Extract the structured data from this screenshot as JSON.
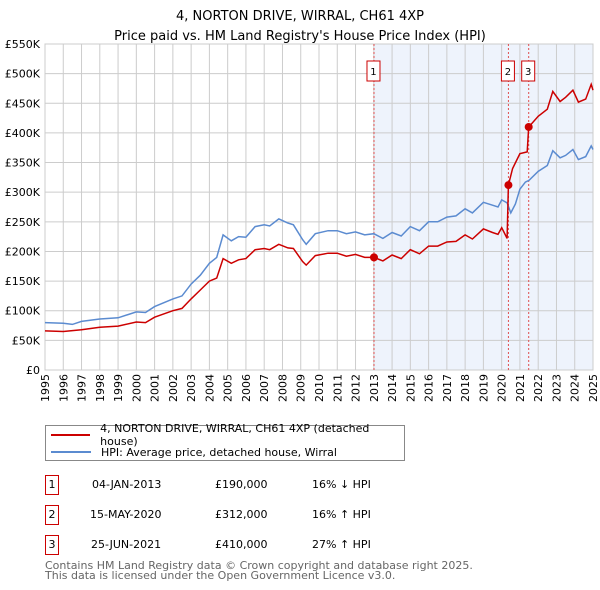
{
  "title": "4, NORTON DRIVE, WIRRAL, CH61 4XP",
  "subtitle": "Price paid vs. HM Land Registry's House Price Index (HPI)",
  "chart_data": {
    "type": "line",
    "xlim": [
      1995,
      2025
    ],
    "ylim": [
      0,
      550000
    ],
    "x_ticks": [
      "1995",
      "1996",
      "1997",
      "1998",
      "1999",
      "2000",
      "2001",
      "2002",
      "2003",
      "2004",
      "2005",
      "2006",
      "2007",
      "2008",
      "2009",
      "2010",
      "2011",
      "2012",
      "2013",
      "2014",
      "2015",
      "2016",
      "2017",
      "2018",
      "2019",
      "2020",
      "2021",
      "2022",
      "2023",
      "2024",
      "2025"
    ],
    "y_ticks": [
      {
        "v": 0,
        "label": "£0"
      },
      {
        "v": 50000,
        "label": "£50K"
      },
      {
        "v": 100000,
        "label": "£100K"
      },
      {
        "v": 150000,
        "label": "£150K"
      },
      {
        "v": 200000,
        "label": "£200K"
      },
      {
        "v": 250000,
        "label": "£250K"
      },
      {
        "v": 300000,
        "label": "£300K"
      },
      {
        "v": 350000,
        "label": "£350K"
      },
      {
        "v": 400000,
        "label": "£400K"
      },
      {
        "v": 450000,
        "label": "£450K"
      },
      {
        "v": 500000,
        "label": "£500K"
      },
      {
        "v": 550000,
        "label": "£550K"
      }
    ],
    "grid": true,
    "shaded_from": 2013.01,
    "series": [
      {
        "name": "4, NORTON DRIVE, WIRRAL, CH61 4XP (detached house)",
        "color": "#cc0000",
        "x": [
          1995,
          1996,
          1997,
          1998,
          1999,
          2000,
          2000.5,
          2001,
          2002,
          2002.5,
          2003,
          2003.5,
          2004,
          2004.4,
          2004.75,
          2005.2,
          2005.6,
          2006,
          2006.5,
          2007,
          2007.3,
          2007.8,
          2008.3,
          2008.6,
          2009.1,
          2009.3,
          2009.8,
          2010.5,
          2011,
          2011.5,
          2012,
          2012.5,
          2013.01,
          2013.5,
          2014,
          2014.5,
          2015,
          2015.5,
          2016,
          2016.5,
          2017,
          2017.5,
          2018,
          2018.4,
          2019,
          2019.5,
          2019.8,
          2020,
          2020.3,
          2020.37,
          2020.6,
          2021,
          2021.4,
          2021.48,
          2022,
          2022.5,
          2022.8,
          2023.2,
          2023.5,
          2023.9,
          2024.2,
          2024.6,
          2024.9,
          2025
        ],
        "y": [
          66000,
          65000,
          68000,
          72000,
          74000,
          81000,
          80000,
          89000,
          100000,
          104000,
          120000,
          135000,
          150000,
          155000,
          188000,
          180000,
          186000,
          188000,
          203000,
          205000,
          203000,
          212000,
          206000,
          205000,
          183000,
          177000,
          193000,
          197000,
          197000,
          192000,
          195000,
          190000,
          190000,
          184000,
          194000,
          188000,
          203000,
          196000,
          209000,
          209000,
          216000,
          217000,
          228000,
          221000,
          238000,
          232000,
          229000,
          240000,
          222000,
          312000,
          340000,
          365000,
          368000,
          410000,
          428000,
          440000,
          470000,
          453000,
          460000,
          472000,
          452000,
          457000,
          482000,
          472000
        ]
      },
      {
        "name": "HPI: Average price, detached house, Wirral",
        "color": "#5b8bd0",
        "x": [
          1995,
          1996,
          1996.5,
          1997,
          1998,
          1999,
          2000,
          2000.5,
          2001,
          2002,
          2002.5,
          2003,
          2003.5,
          2004,
          2004.4,
          2004.75,
          2005.2,
          2005.6,
          2006,
          2006.5,
          2007,
          2007.3,
          2007.8,
          2008.3,
          2008.6,
          2009.1,
          2009.3,
          2009.8,
          2010.5,
          2011,
          2011.5,
          2012,
          2012.5,
          2013,
          2013.5,
          2014,
          2014.5,
          2015,
          2015.5,
          2016,
          2016.5,
          2017,
          2017.5,
          2018,
          2018.4,
          2019,
          2019.5,
          2019.8,
          2020,
          2020.3,
          2020.5,
          2020.75,
          2021,
          2021.3,
          2021.5,
          2022,
          2022.5,
          2022.8,
          2023.2,
          2023.5,
          2023.9,
          2024.2,
          2024.6,
          2024.9,
          2025
        ],
        "y": [
          80000,
          79000,
          77000,
          82000,
          86000,
          88000,
          98000,
          97000,
          107000,
          120000,
          125000,
          145000,
          160000,
          180000,
          190000,
          228000,
          218000,
          225000,
          224000,
          242000,
          245000,
          243000,
          255000,
          248000,
          245000,
          220000,
          212000,
          230000,
          235000,
          235000,
          230000,
          233000,
          228000,
          230000,
          222000,
          232000,
          226000,
          242000,
          235000,
          250000,
          250000,
          258000,
          260000,
          272000,
          265000,
          283000,
          278000,
          275000,
          287000,
          282000,
          265000,
          280000,
          305000,
          317000,
          320000,
          335000,
          345000,
          370000,
          358000,
          362000,
          372000,
          355000,
          360000,
          378000,
          372000
        ]
      }
    ],
    "sales": [
      {
        "id": "1",
        "date": "04-JAN-2013",
        "x": 2013.01,
        "price": "£190,000",
        "value": 190000,
        "hpi": "16% ↓ HPI"
      },
      {
        "id": "2",
        "date": "15-MAY-2020",
        "x": 2020.37,
        "price": "£312,000",
        "value": 312000,
        "hpi": "16% ↑ HPI"
      },
      {
        "id": "3",
        "date": "25-JUN-2021",
        "x": 2021.48,
        "price": "£410,000",
        "value": 410000,
        "hpi": "27% ↑ HPI"
      }
    ]
  },
  "footer": {
    "line1": "Contains HM Land Registry data © Crown copyright and database right 2025.",
    "line2": "This data is licensed under the Open Government Licence v3.0."
  }
}
